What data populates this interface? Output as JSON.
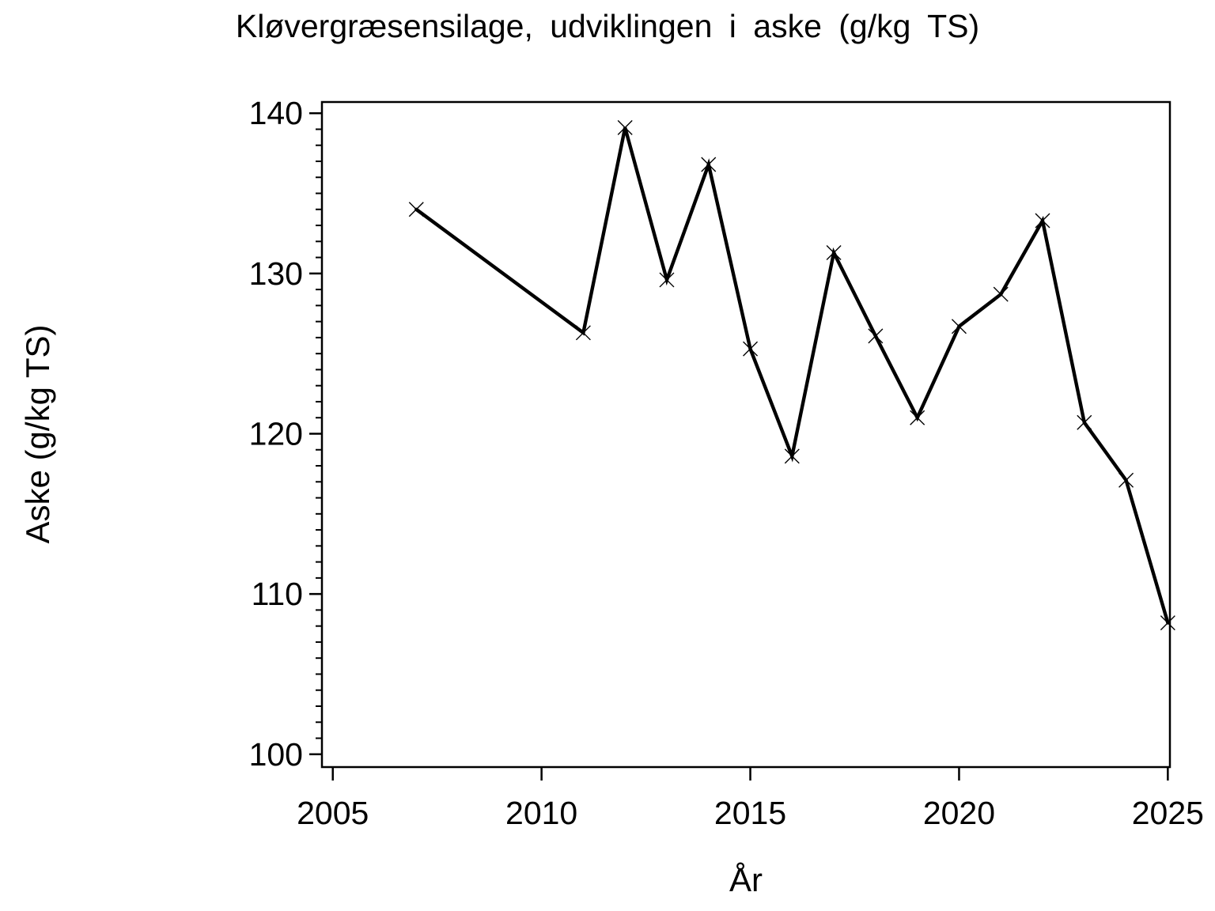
{
  "chart_data": {
    "type": "line",
    "title": "Kløvergræsensilage,  udviklingen  i  aske  (g/kg  TS)",
    "xlabel": "År",
    "ylabel": "Aske  (g/kg  TS)",
    "x": [
      2007,
      2011,
      2012,
      2013,
      2014,
      2015,
      2016,
      2017,
      2018,
      2019,
      2020,
      2021,
      2022,
      2023,
      2024,
      2025
    ],
    "values": [
      134.0,
      126.3,
      139.1,
      129.6,
      136.8,
      125.3,
      118.6,
      131.3,
      126.1,
      121.0,
      126.7,
      128.7,
      133.3,
      120.7,
      117.1,
      108.2
    ],
    "series_name": "Aske",
    "x_ticks": [
      2005,
      2010,
      2015,
      2020,
      2025
    ],
    "y_ticks": [
      100,
      110,
      120,
      130,
      140
    ],
    "y_minor_step": 1,
    "xlim": [
      2004.74,
      2025.05
    ],
    "ylim": [
      99.2,
      140.7
    ],
    "grid": false,
    "legend": "none",
    "marker": "x-cross",
    "line_color": "#000000",
    "background_color": "#ffffff"
  }
}
